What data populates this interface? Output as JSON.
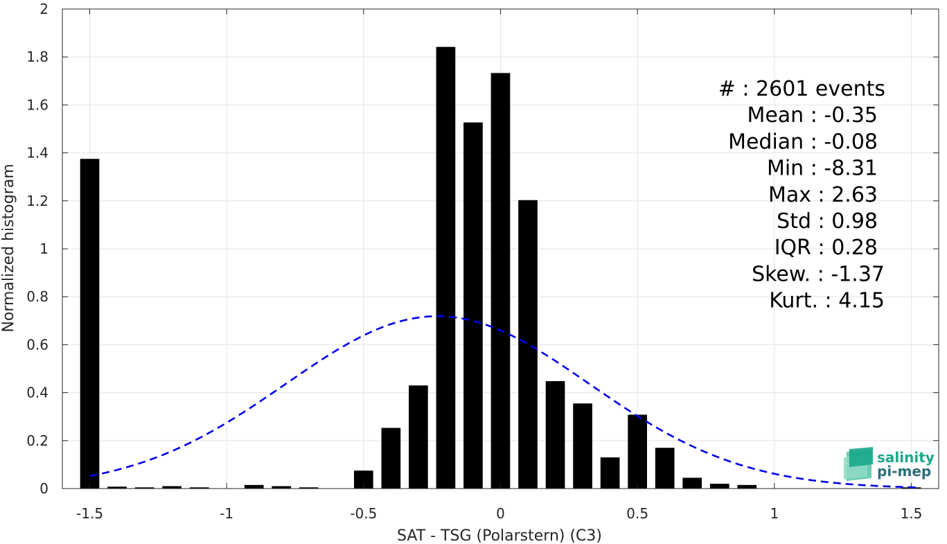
{
  "chart_data": {
    "type": "bar",
    "xlabel": "SAT - TSG (Polarstern) (C3)",
    "ylabel": "Normalized histogram",
    "xlim": [
      -1.6,
      1.6
    ],
    "ylim": [
      0,
      2
    ],
    "grid": true,
    "x_ticks": [
      -1.5,
      -1,
      -0.5,
      0,
      0.5,
      1,
      1.5
    ],
    "x_tick_labels": [
      "-1.5",
      "-1",
      "-0.5",
      "0",
      "0.5",
      "1",
      "1.5"
    ],
    "y_ticks": [
      0,
      0.2,
      0.4,
      0.6,
      0.8,
      1,
      1.2,
      1.4,
      1.6,
      1.8,
      2
    ],
    "y_tick_labels": [
      "0",
      "0.2",
      "0.4",
      "0.6",
      "0.8",
      "1",
      "1.2",
      "1.4",
      "1.6",
      "1.8",
      "2"
    ],
    "bar_color": "#000000",
    "bar_width": 0.07,
    "bars": [
      {
        "x": -1.5,
        "value": 1.375
      },
      {
        "x": -1.4,
        "value": 0.008
      },
      {
        "x": -1.3,
        "value": 0.005
      },
      {
        "x": -1.2,
        "value": 0.01
      },
      {
        "x": -1.1,
        "value": 0.005
      },
      {
        "x": -0.9,
        "value": 0.015
      },
      {
        "x": -0.8,
        "value": 0.01
      },
      {
        "x": -0.7,
        "value": 0.005
      },
      {
        "x": -0.5,
        "value": 0.075
      },
      {
        "x": -0.4,
        "value": 0.253
      },
      {
        "x": -0.3,
        "value": 0.43
      },
      {
        "x": -0.2,
        "value": 1.842
      },
      {
        "x": -0.1,
        "value": 1.527
      },
      {
        "x": 0.0,
        "value": 1.733
      },
      {
        "x": 0.1,
        "value": 1.203
      },
      {
        "x": 0.2,
        "value": 0.448
      },
      {
        "x": 0.3,
        "value": 0.355
      },
      {
        "x": 0.4,
        "value": 0.13
      },
      {
        "x": 0.5,
        "value": 0.308
      },
      {
        "x": 0.6,
        "value": 0.17
      },
      {
        "x": 0.7,
        "value": 0.045
      },
      {
        "x": 0.8,
        "value": 0.02
      },
      {
        "x": 0.9,
        "value": 0.015
      },
      {
        "x": 1.5,
        "value": 0.005
      }
    ],
    "fit_curve": {
      "style": "dashed",
      "color": "#0000ee",
      "mean": -0.23,
      "std": 0.555,
      "x_range": [
        -1.5,
        1.52
      ]
    },
    "stats": [
      "#  : 2601 events",
      "Mean : -0.35",
      "Median : -0.08",
      "Min : -8.31",
      "Max : 2.63",
      "Std : 0.98",
      "IQR : 0.28",
      "Skew. : -1.37",
      "Kurt. : 4.15"
    ]
  },
  "logo": {
    "line1": "salinity",
    "line2": "pi-mep",
    "color_line1": "#1aa88a",
    "color_line2": "#2e6f7a"
  }
}
